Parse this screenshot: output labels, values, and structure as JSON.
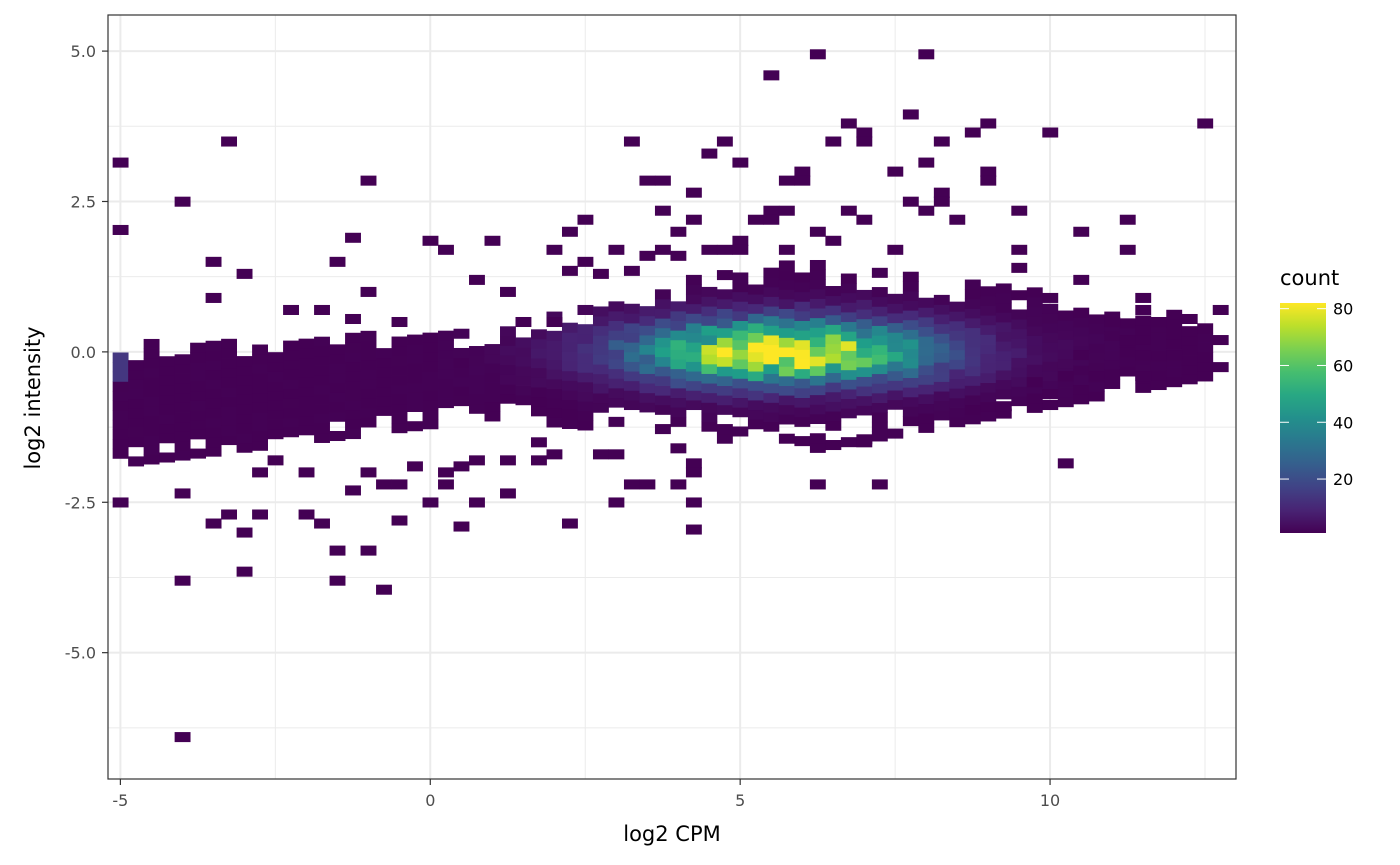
{
  "chart_data": {
    "type": "heatmap",
    "subtype": "2d-bin-count",
    "xlabel": "log2 CPM",
    "ylabel": "log2 intensity",
    "xlim": [
      -5.2,
      13.0
    ],
    "ylim": [
      -7.1,
      5.6
    ],
    "x_ticks": [
      -5,
      0,
      5,
      10
    ],
    "x_tick_labels": [
      "-5",
      "0",
      "5",
      "10"
    ],
    "y_ticks": [
      -5,
      -2.5,
      0,
      2.5,
      5
    ],
    "y_tick_labels": [
      "-5.0",
      "-2.5",
      "0.0",
      "2.5",
      "5.0"
    ],
    "bin_width_x": 0.25,
    "bin_height_y": 0.16,
    "grid": true,
    "legend": {
      "title": "count",
      "position": "right",
      "min": 1,
      "max": 82,
      "ticks": [
        20,
        40,
        60,
        80
      ],
      "tick_labels": [
        "20",
        "40",
        "60",
        "80"
      ],
      "palette": "viridis"
    },
    "colors": {
      "low": "#440154",
      "mid": "#21908C",
      "high": "#FDE725",
      "panel_border": "#333333",
      "grid": "#ebebeb"
    },
    "dense_region": {
      "x_range": [
        -5,
        12.5
      ],
      "y_center": 0,
      "peak_x": 5.7,
      "peak_y": 0,
      "peak_count": 82
    },
    "outlier_bins": [
      [
        -5,
        3.15
      ],
      [
        -5,
        2.03
      ],
      [
        -5,
        -2.5
      ],
      [
        -4,
        2.5
      ],
      [
        -4,
        -2.35
      ],
      [
        -4,
        -3.8
      ],
      [
        -4,
        -6.4
      ],
      [
        -3.5,
        1.5
      ],
      [
        -3.5,
        0.9
      ],
      [
        -3.5,
        -2.85
      ],
      [
        -3.25,
        3.5
      ],
      [
        -3.25,
        -2.7
      ],
      [
        -3,
        1.3
      ],
      [
        -3,
        -3.0
      ],
      [
        -3,
        -3.65
      ],
      [
        -2.75,
        -2.0
      ],
      [
        -2.75,
        -2.7
      ],
      [
        -2.5,
        -1.8
      ],
      [
        -2.25,
        0.7
      ],
      [
        -2,
        -2.0
      ],
      [
        -2,
        -2.7
      ],
      [
        -1.75,
        0.7
      ],
      [
        -1.75,
        -2.85
      ],
      [
        -1.5,
        1.5
      ],
      [
        -1.5,
        -3.3
      ],
      [
        -1.5,
        -3.8
      ],
      [
        -1.25,
        1.9
      ],
      [
        -1.25,
        0.55
      ],
      [
        -1.25,
        -2.3
      ],
      [
        -1,
        2.85
      ],
      [
        -1,
        1.0
      ],
      [
        -1,
        -2.0
      ],
      [
        -1,
        -3.3
      ],
      [
        -0.75,
        -2.2
      ],
      [
        -0.75,
        -3.95
      ],
      [
        -0.5,
        0.5
      ],
      [
        -0.5,
        -2.2
      ],
      [
        -0.5,
        -2.8
      ],
      [
        -0.25,
        -1.9
      ],
      [
        0,
        1.85
      ],
      [
        0,
        -2.5
      ],
      [
        0.25,
        1.7
      ],
      [
        0.25,
        -2.0
      ],
      [
        0.25,
        -2.2
      ],
      [
        0.5,
        -1.9
      ],
      [
        0.5,
        -2.9
      ],
      [
        0.75,
        1.2
      ],
      [
        0.75,
        -2.5
      ],
      [
        0.75,
        -1.8
      ],
      [
        1,
        1.85
      ],
      [
        1.25,
        1.0
      ],
      [
        1.25,
        -1.8
      ],
      [
        1.25,
        -2.35
      ],
      [
        1.5,
        0.5
      ],
      [
        1.75,
        -1.5
      ],
      [
        1.75,
        -1.8
      ],
      [
        2,
        1.7
      ],
      [
        2,
        0.5
      ],
      [
        2,
        -1.7
      ],
      [
        2.25,
        2.0
      ],
      [
        2.25,
        1.35
      ],
      [
        2.25,
        -2.85
      ],
      [
        2.5,
        2.2
      ],
      [
        2.5,
        1.5
      ],
      [
        2.75,
        1.3
      ],
      [
        2.75,
        -1.7
      ],
      [
        3,
        1.7
      ],
      [
        3,
        -1.7
      ],
      [
        3,
        -2.5
      ],
      [
        3.25,
        3.5
      ],
      [
        3.25,
        1.35
      ],
      [
        3.25,
        -2.2
      ],
      [
        3.5,
        2.85
      ],
      [
        3.5,
        1.6
      ],
      [
        3.5,
        -2.2
      ],
      [
        3.75,
        2.85
      ],
      [
        3.75,
        2.35
      ],
      [
        3.75,
        1.7
      ],
      [
        4,
        2.0
      ],
      [
        4,
        1.6
      ],
      [
        4,
        -1.6
      ],
      [
        4,
        -2.2
      ],
      [
        4.25,
        2.65
      ],
      [
        4.25,
        2.2
      ],
      [
        4.25,
        -1.85
      ],
      [
        4.25,
        -2.0
      ],
      [
        4.25,
        -2.5
      ],
      [
        4.25,
        -2.95
      ],
      [
        4.5,
        3.3
      ],
      [
        4.5,
        1.7
      ],
      [
        4.75,
        3.5
      ],
      [
        4.75,
        1.7
      ],
      [
        5,
        3.15
      ],
      [
        5,
        1.85
      ],
      [
        5,
        1.7
      ],
      [
        5.25,
        2.2
      ],
      [
        5.5,
        4.6
      ],
      [
        5.5,
        2.35
      ],
      [
        5.5,
        2.2
      ],
      [
        5.75,
        2.85
      ],
      [
        5.75,
        2.35
      ],
      [
        5.75,
        1.7
      ],
      [
        6,
        3.0
      ],
      [
        6,
        2.85
      ],
      [
        6.25,
        4.95
      ],
      [
        6.25,
        2.0
      ],
      [
        6.25,
        -2.2
      ],
      [
        6.5,
        3.5
      ],
      [
        6.5,
        1.85
      ],
      [
        6.75,
        3.8
      ],
      [
        6.75,
        2.35
      ],
      [
        7,
        3.65
      ],
      [
        7,
        3.5
      ],
      [
        7,
        2.2
      ],
      [
        7,
        -1.5
      ],
      [
        7.25,
        -2.2
      ],
      [
        7.5,
        3.0
      ],
      [
        7.5,
        1.7
      ],
      [
        7.75,
        3.95
      ],
      [
        7.75,
        2.5
      ],
      [
        8,
        4.95
      ],
      [
        8,
        3.15
      ],
      [
        8,
        2.35
      ],
      [
        8.25,
        3.5
      ],
      [
        8.25,
        2.65
      ],
      [
        8.25,
        2.5
      ],
      [
        8.5,
        2.2
      ],
      [
        8.75,
        3.65
      ],
      [
        9,
        3.8
      ],
      [
        9,
        3.0
      ],
      [
        9,
        2.85
      ],
      [
        9.25,
        -0.9
      ],
      [
        9.5,
        2.35
      ],
      [
        9.5,
        1.7
      ],
      [
        9.5,
        1.4
      ],
      [
        9.75,
        -0.5
      ],
      [
        10,
        3.65
      ],
      [
        10,
        0.9
      ],
      [
        10,
        -0.7
      ],
      [
        10.25,
        -1.85
      ],
      [
        10.25,
        -0.4
      ],
      [
        10.5,
        2.0
      ],
      [
        10.5,
        1.2
      ],
      [
        10.5,
        -0.05
      ],
      [
        10.75,
        -0.4
      ],
      [
        11,
        0.5
      ],
      [
        11.25,
        2.2
      ],
      [
        11.25,
        1.7
      ],
      [
        11.25,
        0.2
      ],
      [
        11.5,
        0.9
      ],
      [
        11.5,
        0.7
      ],
      [
        11.5,
        -0.05
      ],
      [
        11.5,
        -0.4
      ],
      [
        11.75,
        0.5
      ],
      [
        12,
        -0.05
      ],
      [
        12.25,
        0.55
      ],
      [
        12.5,
        3.8
      ],
      [
        12.75,
        0.2
      ],
      [
        12.75,
        0.7
      ],
      [
        12.75,
        -0.25
      ]
    ]
  }
}
